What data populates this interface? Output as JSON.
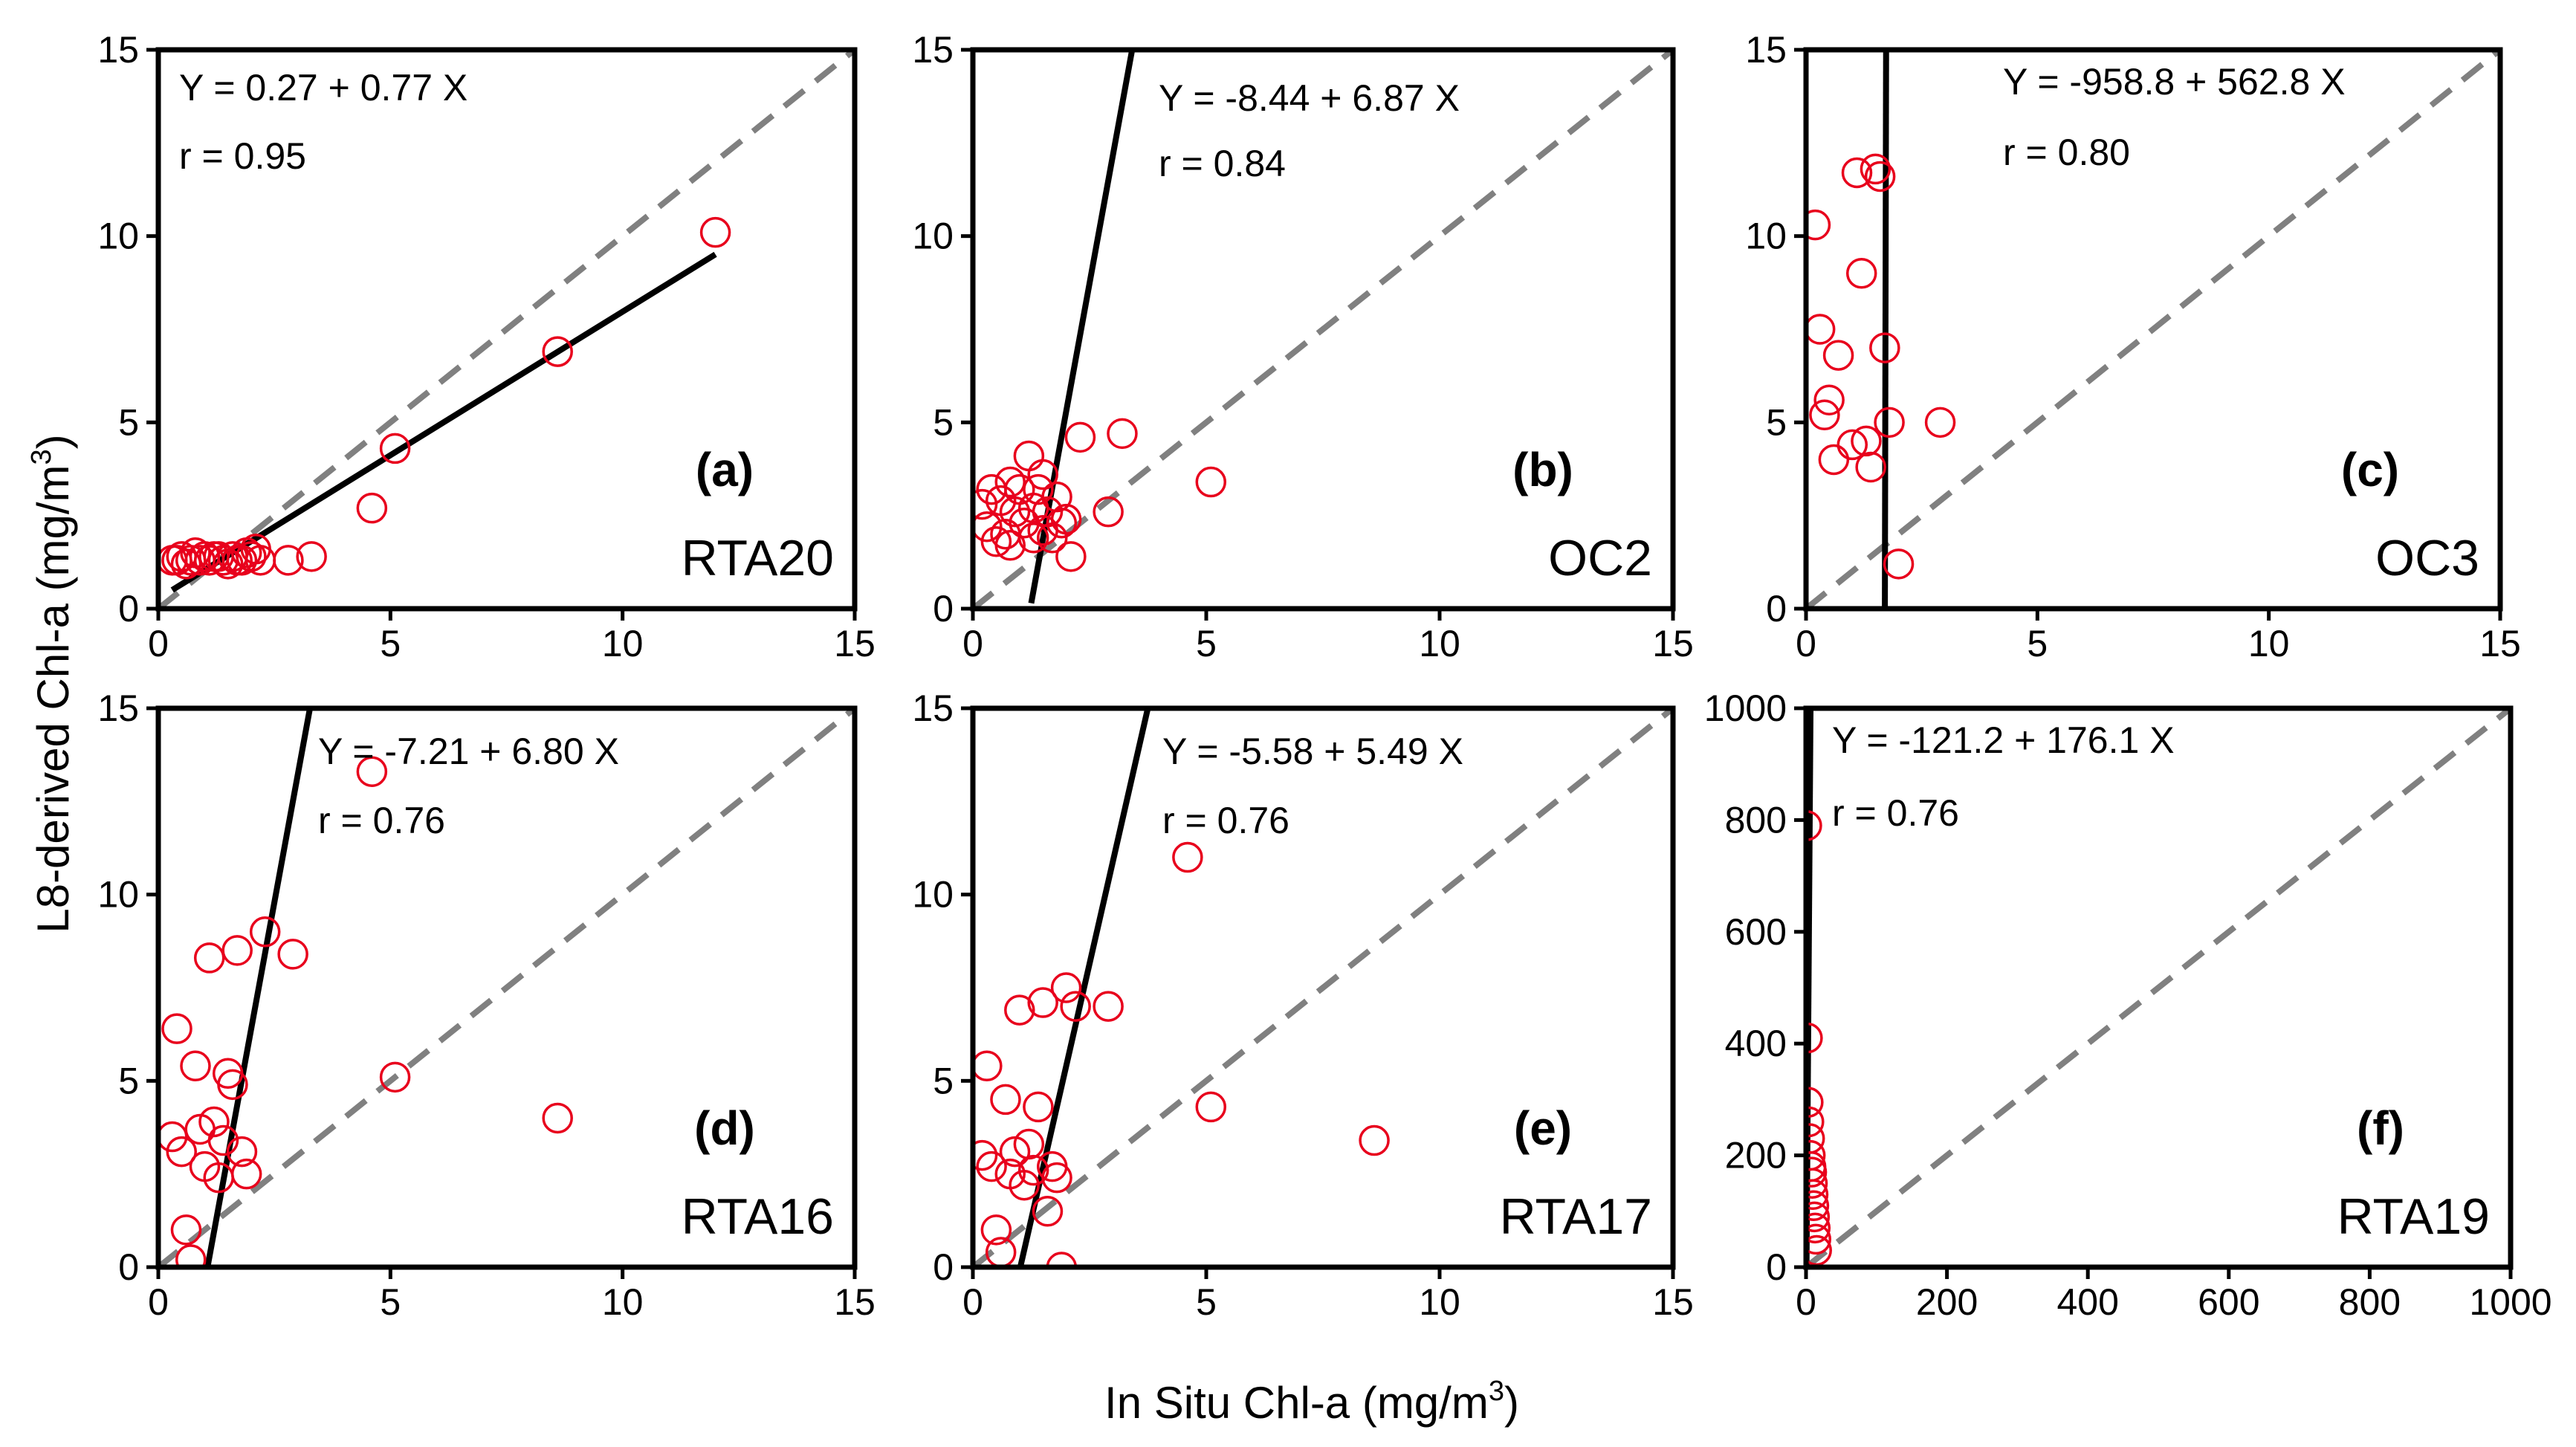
{
  "figure": {
    "y_axis_title": "L8-derived Chl-a (mg/m",
    "y_axis_title_sup": "3",
    "y_axis_title_end": ")",
    "x_axis_title": "In Situ Chl-a (mg/m",
    "x_axis_title_sup": "3",
    "x_axis_title_end": ")",
    "colors": {
      "points": "#e8001c",
      "fit_line": "#000000",
      "one_to_one": "#808080"
    }
  },
  "chart_data": [
    {
      "type": "scatter",
      "panel": "(a)",
      "method": "RTA20",
      "equation": "Y = 0.27 + 0.77 X",
      "r_text": "r = 0.95",
      "fit": {
        "intercept": 0.27,
        "slope": 0.77,
        "x_range": [
          0.3,
          12
        ]
      },
      "xlim": [
        0,
        15
      ],
      "ylim": [
        0,
        15
      ],
      "xticks": [
        0,
        5,
        10,
        15
      ],
      "yticks": [
        0,
        5,
        10,
        15
      ],
      "x": [
        0.3,
        0.4,
        0.5,
        0.6,
        0.7,
        0.8,
        0.9,
        1.0,
        1.1,
        1.2,
        1.3,
        1.4,
        1.5,
        1.6,
        1.7,
        1.8,
        1.9,
        2.0,
        2.1,
        2.2,
        2.8,
        3.3,
        4.6,
        5.1,
        8.6,
        12.0
      ],
      "y": [
        1.3,
        1.3,
        1.4,
        1.2,
        1.3,
        1.5,
        1.3,
        1.4,
        1.3,
        1.4,
        1.4,
        1.3,
        1.2,
        1.4,
        1.3,
        1.3,
        1.5,
        1.4,
        1.6,
        1.3,
        1.3,
        1.4,
        2.7,
        4.3,
        6.9,
        10.1
      ]
    },
    {
      "type": "scatter",
      "panel": "(b)",
      "method": "OC2",
      "equation": "Y = -8.44 + 6.87 X",
      "r_text": "r = 0.84",
      "fit": {
        "intercept": -8.44,
        "slope": 6.87,
        "x_range": [
          1.25,
          3.45
        ]
      },
      "xlim": [
        0,
        15
      ],
      "ylim": [
        0,
        15
      ],
      "xticks": [
        0,
        5,
        10,
        15
      ],
      "yticks": [
        0,
        5,
        10,
        15
      ],
      "x": [
        0.2,
        0.3,
        0.4,
        0.5,
        0.6,
        0.7,
        0.8,
        0.8,
        0.9,
        1.0,
        1.1,
        1.2,
        1.3,
        1.3,
        1.4,
        1.5,
        1.5,
        1.6,
        1.7,
        1.8,
        1.9,
        2.0,
        2.1,
        2.3,
        2.9,
        3.2,
        5.1
      ],
      "y": [
        2.8,
        2.2,
        3.2,
        1.8,
        2.9,
        2.0,
        3.4,
        1.7,
        2.6,
        3.2,
        2.3,
        4.1,
        2.7,
        1.9,
        3.2,
        3.6,
        2.1,
        2.6,
        1.9,
        3.0,
        2.3,
        2.4,
        1.4,
        4.6,
        2.6,
        4.7,
        3.4
      ]
    },
    {
      "type": "scatter",
      "panel": "(c)",
      "method": "OC3",
      "equation": "Y = -958.8 + 562.8 X",
      "r_text": "r = 0.80",
      "fit": {
        "intercept": -958.8,
        "slope": 562.8,
        "x_range": [
          1.7036,
          1.7302
        ]
      },
      "xlim": [
        0,
        15
      ],
      "ylim": [
        0,
        15
      ],
      "xticks": [
        0,
        5,
        10,
        15
      ],
      "yticks": [
        0,
        5,
        10,
        15
      ],
      "x": [
        0.2,
        0.3,
        0.4,
        0.5,
        0.6,
        0.7,
        1.0,
        1.1,
        1.2,
        1.3,
        1.4,
        1.5,
        1.6,
        1.7,
        1.8,
        2.0,
        2.9
      ],
      "y": [
        10.3,
        7.5,
        5.2,
        5.6,
        4.0,
        6.8,
        4.4,
        11.7,
        9.0,
        4.5,
        3.8,
        11.8,
        11.6,
        7.0,
        5.0,
        1.2,
        5.0
      ]
    },
    {
      "type": "scatter",
      "panel": "(d)",
      "method": "RTA16",
      "equation": "Y = -7.21 + 6.80 X",
      "r_text": "r = 0.76",
      "fit": {
        "intercept": -7.21,
        "slope": 6.8,
        "x_range": [
          1.06,
          3.27
        ]
      },
      "xlim": [
        0,
        15
      ],
      "ylim": [
        0,
        15
      ],
      "xticks": [
        0,
        5,
        10,
        15
      ],
      "yticks": [
        0,
        5,
        10,
        15
      ],
      "x": [
        0.3,
        0.4,
        0.5,
        0.6,
        0.7,
        0.8,
        0.9,
        1.0,
        1.1,
        1.2,
        1.3,
        1.4,
        1.5,
        1.6,
        1.7,
        1.8,
        1.9,
        2.3,
        2.9,
        4.6,
        5.1,
        8.6
      ],
      "y": [
        3.5,
        6.4,
        3.1,
        1.0,
        0.2,
        5.4,
        3.7,
        2.7,
        8.3,
        3.9,
        2.4,
        3.4,
        5.2,
        4.9,
        8.5,
        3.1,
        2.5,
        9.0,
        8.4,
        13.3,
        5.1,
        4.0
      ]
    },
    {
      "type": "scatter",
      "panel": "(e)",
      "method": "RTA17",
      "equation": "Y = -5.58 + 5.49 X",
      "r_text": "r = 0.76",
      "fit": {
        "intercept": -5.58,
        "slope": 5.49,
        "x_range": [
          1.02,
          3.75
        ]
      },
      "xlim": [
        0,
        15
      ],
      "ylim": [
        0,
        15
      ],
      "xticks": [
        0,
        5,
        10,
        15
      ],
      "yticks": [
        0,
        5,
        10,
        15
      ],
      "x": [
        0.2,
        0.3,
        0.4,
        0.5,
        0.6,
        0.7,
        0.8,
        0.9,
        1.0,
        1.1,
        1.2,
        1.3,
        1.4,
        1.5,
        1.6,
        1.7,
        1.8,
        1.9,
        2.0,
        2.2,
        2.9,
        4.6,
        5.1,
        8.6
      ],
      "y": [
        3.0,
        5.4,
        2.7,
        1.0,
        0.4,
        4.5,
        2.5,
        3.1,
        6.9,
        2.2,
        3.3,
        2.6,
        4.3,
        7.1,
        1.5,
        2.7,
        2.4,
        0.0,
        7.5,
        7.0,
        7.0,
        11.0,
        4.3,
        3.4
      ]
    },
    {
      "type": "scatter",
      "panel": "(f)",
      "method": "RTA19",
      "equation": "Y = -121.2 + 176.1 X",
      "r_text": "r = 0.76",
      "fit": {
        "intercept": -121.2,
        "slope": 176.1,
        "x_range": [
          0.69,
          6.36
        ]
      },
      "xlim": [
        0,
        1000
      ],
      "ylim": [
        0,
        1000
      ],
      "xticks": [
        0,
        200,
        400,
        600,
        800,
        1000
      ],
      "yticks": [
        0,
        200,
        400,
        600,
        800,
        1000
      ],
      "x": [
        1,
        2,
        3,
        4,
        5,
        6,
        7,
        8,
        9,
        10,
        11,
        12,
        13,
        14,
        15
      ],
      "y": [
        790,
        410,
        295,
        260,
        230,
        200,
        180,
        170,
        150,
        130,
        110,
        90,
        70,
        50,
        30
      ]
    }
  ]
}
